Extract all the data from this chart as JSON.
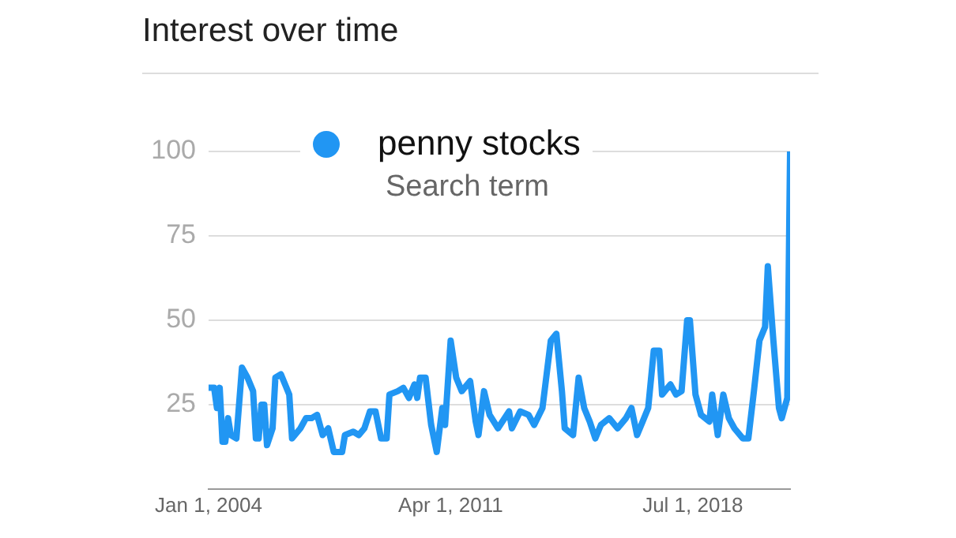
{
  "chart_data": {
    "type": "line",
    "title": "Interest over time",
    "annotations": [
      "Search term"
    ],
    "x": [
      "2004-01",
      "2004-03",
      "2004-04",
      "2004-05",
      "2004-06",
      "2004-07",
      "2004-08",
      "2004-09",
      "2004-11",
      "2005-01",
      "2005-03",
      "2005-05",
      "2005-06",
      "2005-07",
      "2005-08",
      "2005-09",
      "2005-10",
      "2005-12",
      "2006-01",
      "2006-03",
      "2006-06",
      "2006-07",
      "2006-10",
      "2006-12",
      "2007-02",
      "2007-04",
      "2007-06",
      "2007-08",
      "2007-10",
      "2008-01",
      "2008-02",
      "2008-05",
      "2008-07",
      "2008-09",
      "2008-11",
      "2009-01",
      "2009-03",
      "2009-05",
      "2009-06",
      "2009-09",
      "2009-11",
      "2010-01",
      "2010-03",
      "2010-04",
      "2010-05",
      "2010-07",
      "2010-09",
      "2010-11",
      "2011-01",
      "2011-02",
      "2011-04",
      "2011-06",
      "2011-08",
      "2011-11",
      "2012-01",
      "2012-02",
      "2012-04",
      "2012-06",
      "2012-09",
      "2013-01",
      "2013-02",
      "2013-05",
      "2013-08",
      "2013-10",
      "2014-01",
      "2014-04",
      "2014-06",
      "2014-08",
      "2014-09",
      "2014-12",
      "2015-02",
      "2015-04",
      "2015-06",
      "2015-08",
      "2015-10",
      "2016-01",
      "2016-04",
      "2016-07",
      "2016-09",
      "2016-11",
      "2017-01",
      "2017-03",
      "2017-05",
      "2017-07",
      "2017-08",
      "2017-11",
      "2018-01",
      "2018-03",
      "2018-05",
      "2018-06",
      "2018-08",
      "2018-10",
      "2019-01",
      "2019-02",
      "2019-04",
      "2019-06",
      "2019-08",
      "2019-10",
      "2020-01",
      "2020-03",
      "2020-05",
      "2020-07",
      "2020-09",
      "2020-10",
      "2020-12",
      "2021-02",
      "2021-03",
      "2021-05",
      "2021-06"
    ],
    "series": [
      {
        "name": "penny stocks",
        "color": "#2196f3",
        "values": [
          30,
          30,
          24,
          30,
          14,
          14,
          21,
          16,
          15,
          36,
          33,
          29,
          15,
          15,
          25,
          25,
          13,
          18,
          33,
          34,
          28,
          15,
          18,
          21,
          21,
          22,
          16,
          18,
          11,
          11,
          16,
          17,
          16,
          18,
          23,
          23,
          15,
          15,
          28,
          29,
          30,
          27,
          31,
          27,
          33,
          33,
          19,
          11,
          24,
          19,
          44,
          33,
          29,
          32,
          20,
          16,
          29,
          22,
          18,
          23,
          18,
          23,
          22,
          19,
          24,
          44,
          46,
          29,
          18,
          16,
          33,
          24,
          20,
          15,
          19,
          21,
          18,
          21,
          24,
          16,
          20,
          24,
          41,
          41,
          28,
          31,
          28,
          29,
          50,
          50,
          28,
          22,
          20,
          28,
          16,
          28,
          21,
          18,
          15,
          15,
          29,
          44,
          48,
          66,
          44,
          24,
          21,
          27,
          100
        ]
      }
    ],
    "xlim": [
      "2004-01-01",
      "2021-06-01"
    ],
    "xticks": [
      {
        "value": "2004-01-01",
        "label": "Jan 1, 2004"
      },
      {
        "value": "2011-04-01",
        "label": "Apr 1, 2011"
      },
      {
        "value": "2018-07-01",
        "label": "Jul 1, 2018"
      }
    ],
    "ylim": [
      0,
      100
    ],
    "yticks": [
      25,
      50,
      75,
      100
    ],
    "grid": "y",
    "legend": "top",
    "marker": "none",
    "line_style": "solid"
  }
}
